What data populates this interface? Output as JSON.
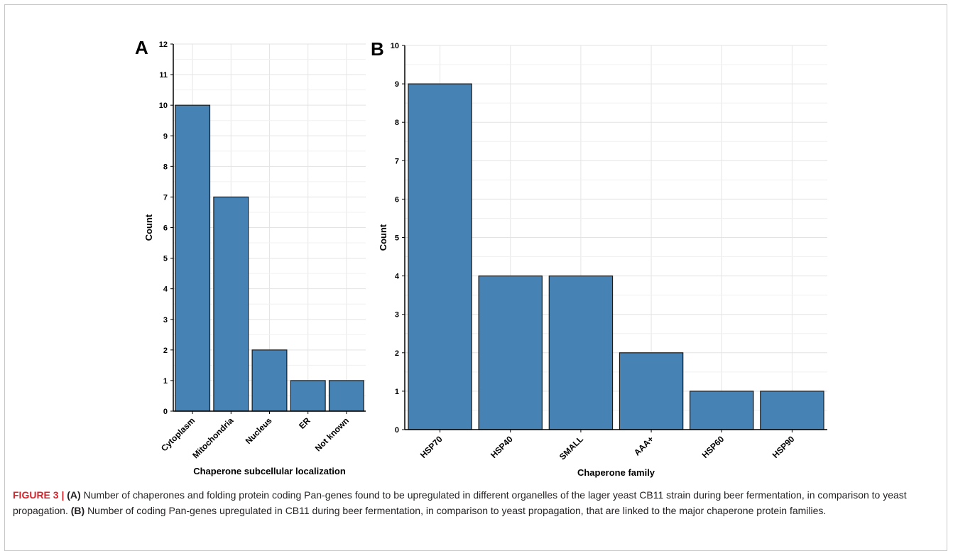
{
  "chart_data": [
    {
      "type": "bar",
      "panel_label": "A",
      "categories": [
        "Cytoplasm",
        "Mitochondria",
        "Nucleus",
        "ER",
        "Not known"
      ],
      "values": [
        10,
        7,
        2,
        1,
        1
      ],
      "xlabel": "Chaperone subcellular localization",
      "ylabel": "Count",
      "ylim": [
        0,
        12
      ],
      "yticks": [
        0,
        1,
        2,
        3,
        4,
        5,
        6,
        7,
        8,
        9,
        10,
        11,
        12
      ],
      "grid": true,
      "bar_color": "#4682b4"
    },
    {
      "type": "bar",
      "panel_label": "B",
      "categories": [
        "HSP70",
        "HSP40",
        "SMALL",
        "AAA+",
        "HSP60",
        "HSP90"
      ],
      "values": [
        9,
        4,
        4,
        2,
        1,
        1
      ],
      "xlabel": "Chaperone family",
      "ylabel": "Count",
      "ylim": [
        0,
        10
      ],
      "yticks": [
        0,
        1,
        2,
        3,
        4,
        5,
        6,
        7,
        8,
        9,
        10
      ],
      "grid": true,
      "bar_color": "#4682b4"
    }
  ],
  "caption": {
    "label": "FIGURE 3 |",
    "a_marker": "(A)",
    "a_text": "Number of chaperones and folding protein coding Pan-genes found to be upregulated in different organelles of the lager yeast CB11 strain during beer fermentation, in comparison to yeast propagation.",
    "b_marker": "(B)",
    "b_text": "Number of coding Pan-genes upregulated in CB11 during beer fermentation, in comparison to yeast propagation, that are linked to the major chaperone protein families."
  }
}
